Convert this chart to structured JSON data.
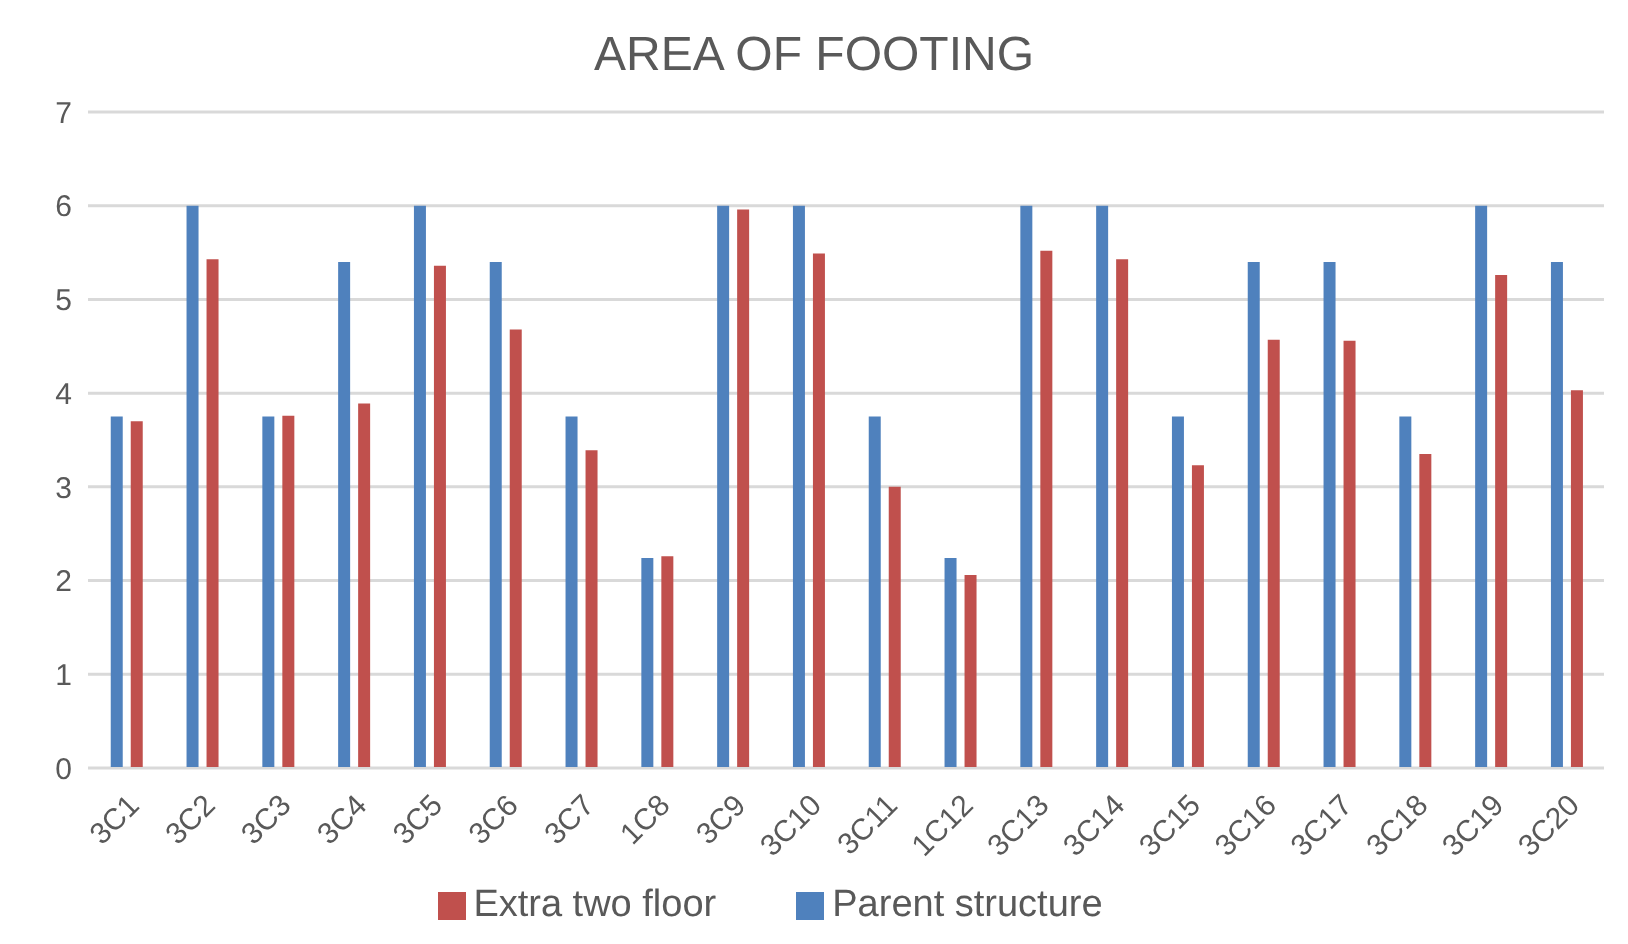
{
  "chart_data": {
    "type": "bar",
    "title": "AREA OF FOOTING",
    "categories": [
      "3C1",
      "3C2",
      "3C3",
      "3C4",
      "3C5",
      "3C6",
      "3C7",
      "1C8",
      "3C9",
      "3C10",
      "3C11",
      "1C12",
      "3C13",
      "3C14",
      "3C15",
      "3C16",
      "3C17",
      "3C18",
      "3C19",
      "3C20"
    ],
    "series": [
      {
        "name": "Parent structure",
        "color": "#4f81bd",
        "values": [
          3.75,
          6,
          3.75,
          5.4,
          6,
          5.4,
          3.75,
          2.24,
          6,
          6,
          3.75,
          2.24,
          6,
          6,
          3.75,
          5.4,
          5.4,
          3.75,
          6,
          5.4
        ]
      },
      {
        "name": "Extra two floor",
        "color": "#c0504d",
        "values": [
          3.7,
          5.43,
          3.76,
          3.89,
          5.36,
          4.68,
          3.39,
          2.26,
          5.96,
          5.49,
          3.0,
          2.06,
          5.52,
          5.43,
          3.23,
          4.57,
          4.56,
          3.35,
          5.26,
          4.03
        ]
      }
    ],
    "ylim": [
      0,
      7
    ],
    "yticks": [
      0,
      1,
      2,
      3,
      4,
      5,
      6,
      7
    ],
    "grid": "y",
    "legend": "bottom"
  }
}
